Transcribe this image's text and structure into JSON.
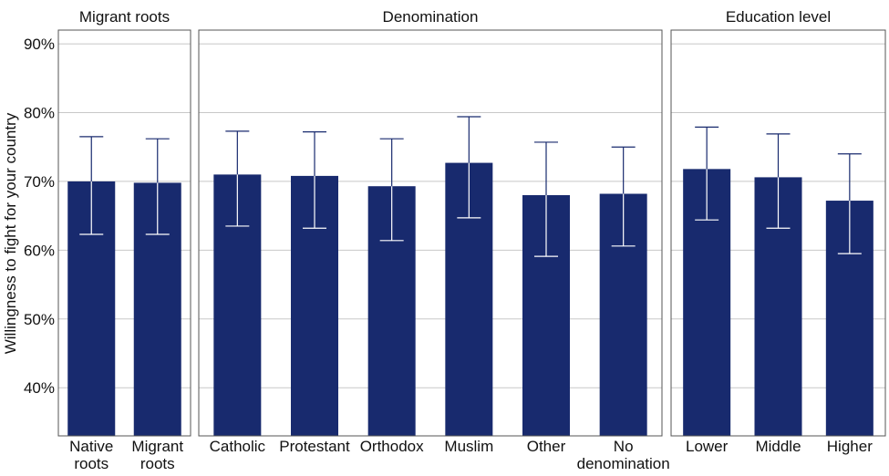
{
  "chart_data": {
    "type": "bar",
    "ylabel": "Willingness to fight for your country",
    "ylim": [
      33,
      92
    ],
    "yticks": [
      40,
      50,
      60,
      70,
      80,
      90
    ],
    "ytick_labels": [
      "40%",
      "50%",
      "60%",
      "70%",
      "80%",
      "90%"
    ],
    "grid": true,
    "bar_color": "#182a6e",
    "facets": [
      {
        "title": "Migrant roots",
        "categories": [
          [
            "Native",
            "roots"
          ],
          [
            "Migrant",
            "roots"
          ]
        ],
        "values": [
          70.0,
          69.8
        ],
        "error_low": [
          62.3,
          62.3
        ],
        "error_high": [
          76.5,
          76.2
        ]
      },
      {
        "title": "Denomination",
        "categories": [
          [
            "Catholic"
          ],
          [
            "Protestant"
          ],
          [
            "Orthodox"
          ],
          [
            "Muslim"
          ],
          [
            "Other"
          ],
          [
            "No",
            "denomination"
          ]
        ],
        "values": [
          71.0,
          70.8,
          69.3,
          72.7,
          68.0,
          68.2
        ],
        "error_low": [
          63.5,
          63.2,
          61.4,
          64.7,
          59.1,
          60.6
        ],
        "error_high": [
          77.3,
          77.2,
          76.2,
          79.4,
          75.7,
          75.0
        ]
      },
      {
        "title": "Education level",
        "categories": [
          [
            "Lower"
          ],
          [
            "Middle"
          ],
          [
            "Higher"
          ]
        ],
        "values": [
          71.8,
          70.6,
          67.2
        ],
        "error_low": [
          64.4,
          63.2,
          59.5
        ],
        "error_high": [
          77.9,
          76.9,
          74.0
        ]
      }
    ]
  }
}
